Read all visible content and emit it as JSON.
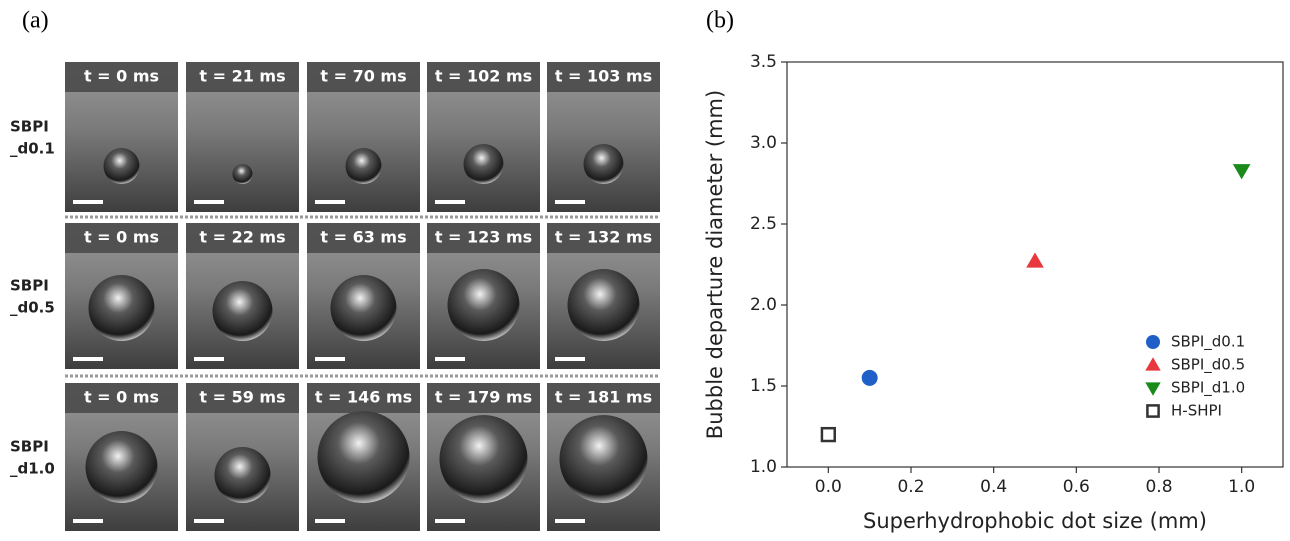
{
  "panel_a": {
    "label": "(a)",
    "rows": [
      {
        "lines": [
          "SBPI",
          "_d0.1"
        ],
        "times": [
          "t = 0 ms",
          "t = 21 ms",
          "t = 70 ms",
          "t = 102 ms",
          "t = 103 ms"
        ]
      },
      {
        "lines": [
          "SBPI",
          "_d0.5"
        ],
        "times": [
          "t = 0 ms",
          "t = 22 ms",
          "t = 63 ms",
          "t = 123 ms",
          "t = 132 ms"
        ]
      },
      {
        "lines": [
          "SBPI",
          "_d1.0"
        ],
        "times": [
          "t = 0 ms",
          "t = 59 ms",
          "t = 146 ms",
          "t = 179 ms",
          "t = 181 ms"
        ]
      }
    ]
  },
  "chart_data": {
    "type": "scatter",
    "panel_label": "(b)",
    "x_label": "Superhydrophobic dot size (mm)",
    "y_label": "Bubble departure diameter (mm)",
    "xlim": [
      -0.1,
      1.1
    ],
    "ylim": [
      1.0,
      3.5
    ],
    "xticks": [
      {
        "value": 0,
        "label": "0.0"
      },
      0.2,
      0.4,
      0.6,
      0.8,
      {
        "value": 1,
        "label": "1.0"
      }
    ],
    "yticks": [
      {
        "value": 1,
        "label": "1.0"
      },
      1.5,
      {
        "value": 2,
        "label": "2.0"
      },
      2.5,
      {
        "value": 3,
        "label": "3.0"
      },
      3.5
    ],
    "legend": "lower right",
    "series": [
      {
        "name": "SBPI_d0.1",
        "color": "#1f5fc8",
        "marker": "circle",
        "x": [
          0.1
        ],
        "values": [
          1.55
        ]
      },
      {
        "name": "SBPI_d0.5",
        "color": "#e8383d",
        "marker": "triangle-up",
        "x": [
          0.5
        ],
        "values": [
          2.27
        ]
      },
      {
        "name": "SBPI_d1.0",
        "color": "#1a8a1a",
        "marker": "triangle-down",
        "x": [
          1
        ],
        "values": [
          2.83
        ]
      },
      {
        "name": "H-SHPI",
        "color": "#333333",
        "marker": "open-square",
        "x": [
          0
        ],
        "values": [
          1.2
        ]
      }
    ]
  }
}
